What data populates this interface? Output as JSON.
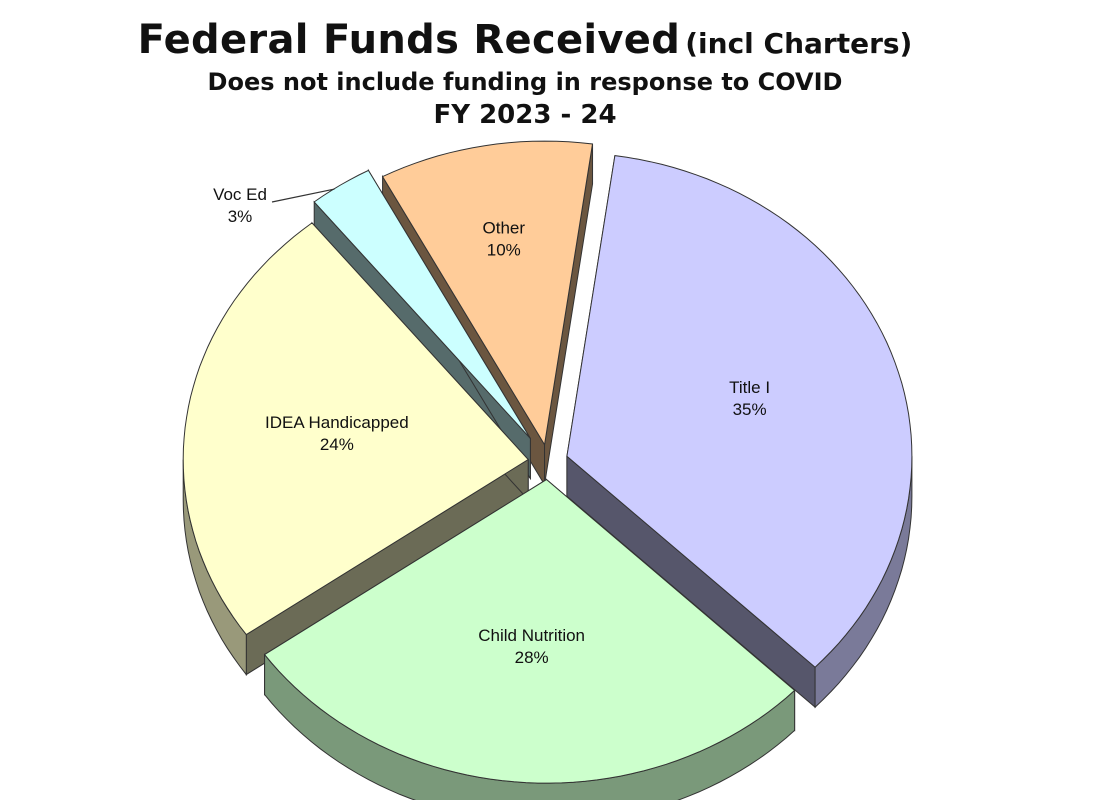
{
  "chart_data": {
    "type": "pie",
    "title": "Federal Funds Received",
    "title_suffix": "(incl Charters)",
    "subtitle": "Does not include funding in response to COVID",
    "period": "FY 2023 - 24",
    "style": "3d-exploded",
    "slices": [
      {
        "name": "Title I",
        "value": 35,
        "label": "35%",
        "color": "#ccccff"
      },
      {
        "name": "Child Nutrition",
        "value": 28,
        "label": "28%",
        "color": "#ccffcc"
      },
      {
        "name": "IDEA Handicapped",
        "value": 24,
        "label": "24%",
        "color": "#ffffcc"
      },
      {
        "name": "Voc Ed",
        "value": 3,
        "label": "3%",
        "color": "#ccffff"
      },
      {
        "name": "Other",
        "value": 10,
        "label": "10%",
        "color": "#ffcc99"
      }
    ]
  }
}
